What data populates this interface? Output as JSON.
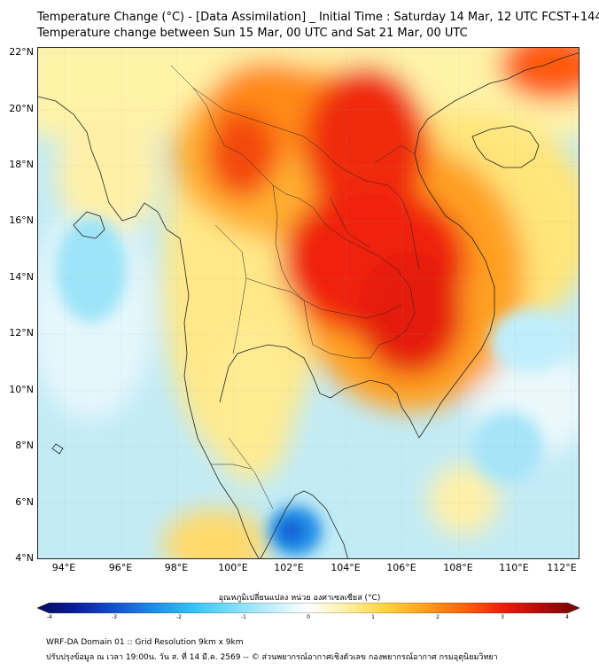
{
  "title_line1": "Temperature Change (°C) - [Data Assimilation] _ Initial Time : Saturday 14 Mar, 12 UTC FCST+144",
  "title_line2": "Temperature change between Sun 15 Mar, 00 UTC and Sat 21 Mar, 00 UTC",
  "lat_labels": [
    "22°N",
    "20°N",
    "18°N",
    "16°N",
    "14°N",
    "12°N",
    "10°N",
    "8°N",
    "6°N",
    "4°N"
  ],
  "lon_labels": [
    "94°E",
    "96°E",
    "98°E",
    "100°E",
    "102°E",
    "104°E",
    "106°E",
    "108°E",
    "110°E",
    "112°E"
  ],
  "colorbar": {
    "title": "อุณหภูมิเปลี่ยนแปลง หน่วย องศาเซลเซียส (°C)",
    "ticks": [
      "-4",
      "-3",
      "-2",
      "-1",
      "0",
      "1",
      "2",
      "3",
      "4"
    ],
    "min": -4,
    "max": 4,
    "colors": [
      "#08085c",
      "#0a1e9e",
      "#1450d2",
      "#1e8ce6",
      "#32c3f5",
      "#78dcfa",
      "#bfeefb",
      "#ffffff",
      "#fff0a0",
      "#ffd23c",
      "#ffa01e",
      "#ff640a",
      "#f01e0a",
      "#b40a0a",
      "#6e0505"
    ]
  },
  "footer_line1": "WRF-DA Domain 01 :: Grid Resolution 9km x 9km",
  "footer_line2": "ปรับปรุงข้อมูล ณ เวลา 19:00น. วัน ส. ที่ 14 มี.ค. 2569 -- © ส่วนพยากรณ์อากาศเชิงตัวเลข กองพยากรณ์อากาศ กรมอุตุนิยมวิทยา"
}
